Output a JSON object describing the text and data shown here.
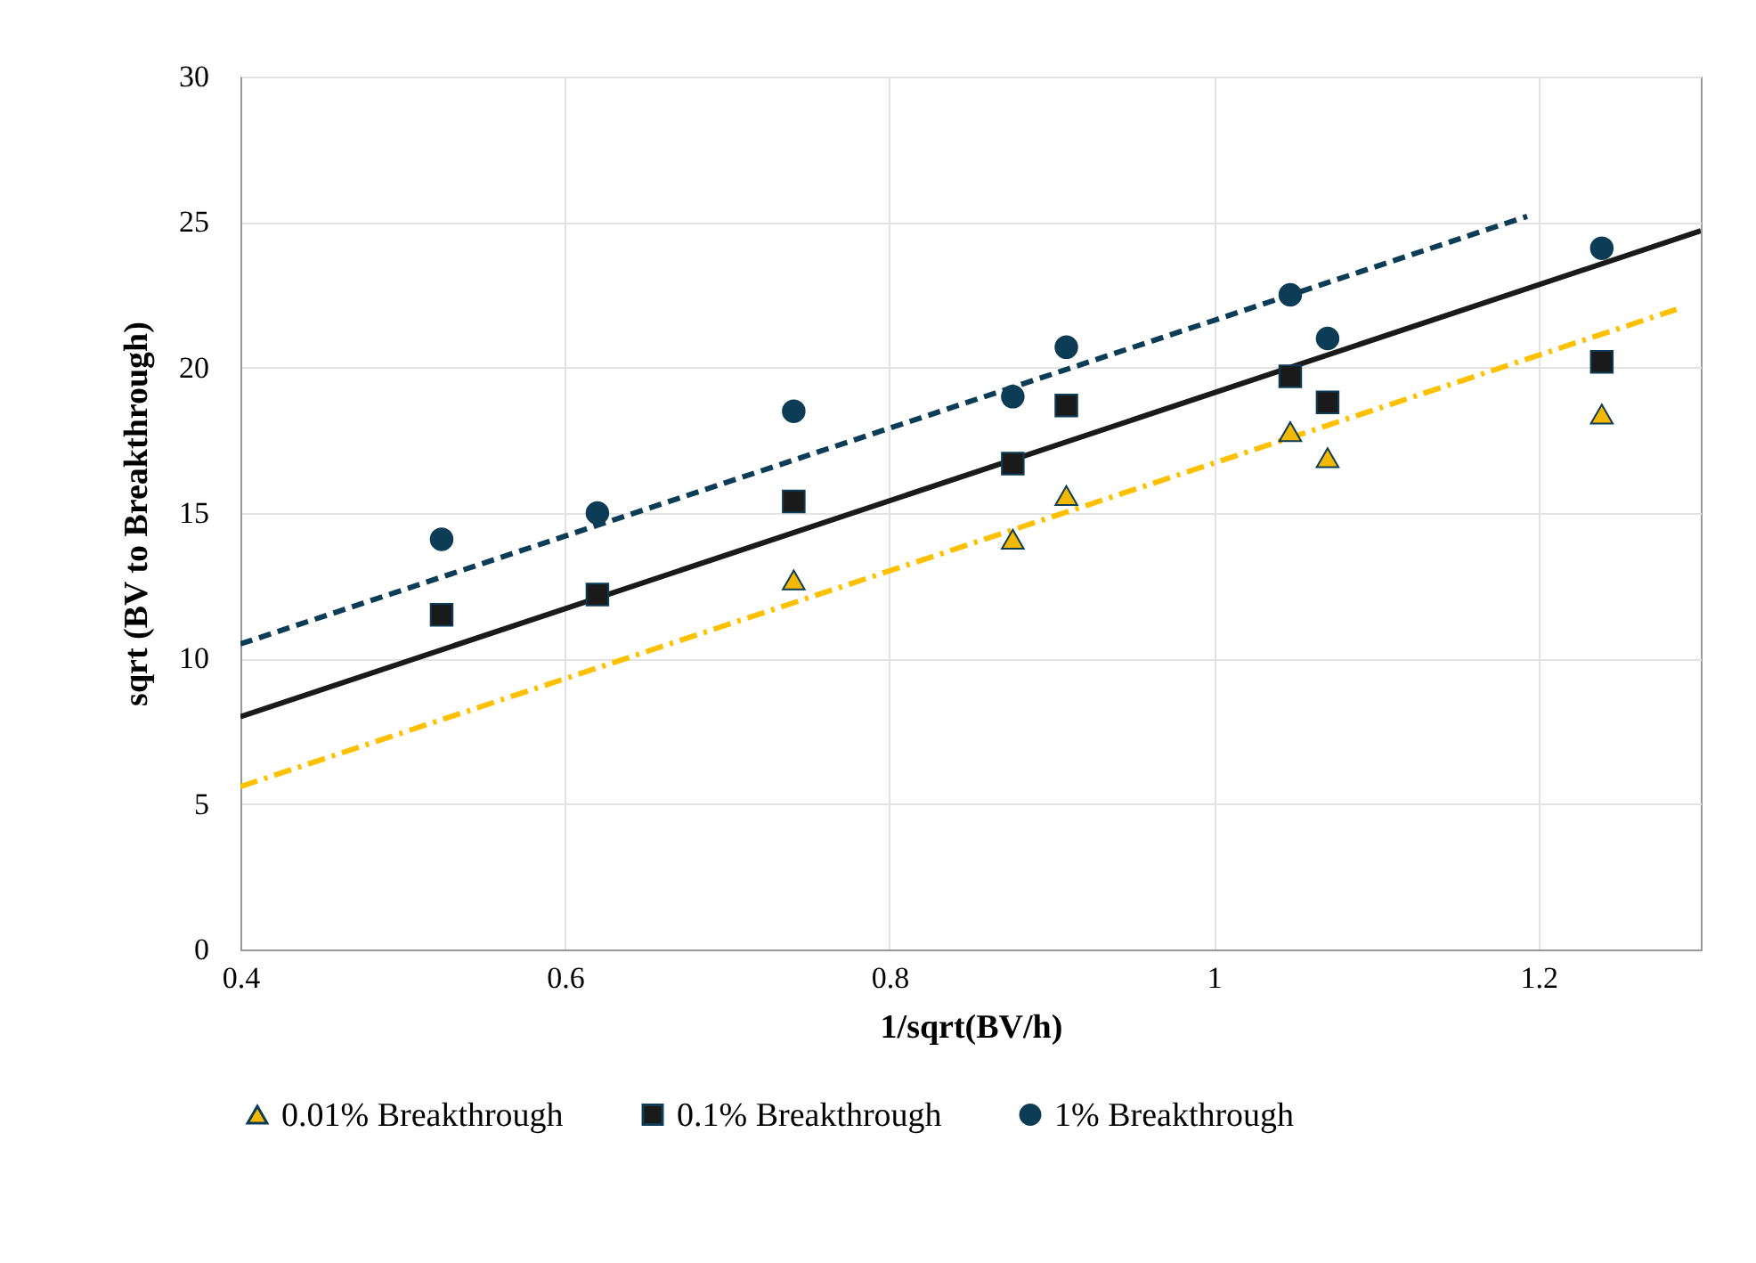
{
  "chart_data": {
    "type": "scatter",
    "xlabel": "1/sqrt(BV/h)",
    "ylabel": "sqrt (BV to Breakthrough)",
    "xlim": [
      0.4,
      1.3
    ],
    "xticks": [
      0.4,
      0.6,
      0.8,
      1,
      1.2
    ],
    "ylim": [
      0,
      30
    ],
    "yticks": [
      0,
      5,
      10,
      15,
      20,
      25,
      30
    ],
    "grid": true,
    "legend": "bottom",
    "series": [
      {
        "name": "0.01% Breakthrough",
        "type": "scatter",
        "marker": "triangle",
        "color": "#f5b800",
        "x": [
          0.741,
          0.876,
          0.909,
          1.047,
          1.07,
          1.239
        ],
        "values": [
          12.7,
          14.1,
          15.6,
          17.8,
          16.9,
          18.4
        ]
      },
      {
        "name": "0.1% Breakthrough",
        "type": "scatter",
        "marker": "square",
        "color": "#1a1a1a",
        "x": [
          0.524,
          0.62,
          0.741,
          0.876,
          0.909,
          1.047,
          1.07,
          1.239
        ],
        "values": [
          11.5,
          12.2,
          15.4,
          16.7,
          18.7,
          19.7,
          18.8,
          20.2
        ]
      },
      {
        "name": "1% Breakthrough",
        "type": "scatter",
        "marker": "circle",
        "color": "#0d3d56",
        "x": [
          0.524,
          0.62,
          0.741,
          0.876,
          0.909,
          1.047,
          1.07,
          1.239
        ],
        "values": [
          14.1,
          15.0,
          18.5,
          19.0,
          20.7,
          22.5,
          21.0,
          24.1
        ]
      },
      {
        "type": "line",
        "line_style": "dashed",
        "color": "#0d3d56",
        "x": [
          0.4,
          1.193
        ],
        "values": [
          10.5,
          25.2
        ]
      },
      {
        "type": "line",
        "line_style": "solid",
        "color": "#1a1a1a",
        "x": [
          0.4,
          1.3
        ],
        "values": [
          8.0,
          24.7
        ]
      },
      {
        "type": "line",
        "line_style": "dotted",
        "color": "#ffc000",
        "x": [
          0.4,
          1.285
        ],
        "values": [
          5.6,
          22.0
        ]
      }
    ]
  }
}
